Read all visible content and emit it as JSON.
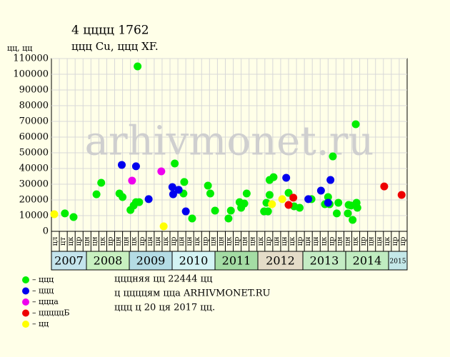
{
  "chart_data": {
    "type": "scatter",
    "title": "4 цццц 1762",
    "subtitle": "ццц Cu, ццц XF.",
    "y_label": "цц, цц",
    "watermark": "arhivmonet.ru",
    "ylim": [
      0,
      110000
    ],
    "yticks": [
      0,
      10000,
      20000,
      30000,
      40000,
      50000,
      60000,
      70000,
      80000,
      90000,
      100000,
      110000
    ],
    "xlim": [
      0,
      45
    ],
    "grid": true,
    "categories": [
      "цл",
      "цт",
      "цк",
      "цр",
      "цн",
      "цн",
      "цк",
      "цр",
      "цн",
      "цн",
      "цк",
      "цр",
      "цн",
      "цн",
      "цк",
      "цр",
      "цн",
      "цн",
      "цк",
      "цр",
      "цн",
      "цн",
      "цк",
      "цр",
      "цн",
      "цн",
      "цк",
      "цр",
      "цн",
      "цн",
      "цк",
      "цр",
      "цн",
      "цн",
      "цк",
      "цр",
      "цн",
      "цн",
      "цк",
      "цр",
      "цн",
      "цн",
      "цк",
      "цр",
      "цр"
    ],
    "years": [
      {
        "label": "2007",
        "color": "#c4e4ec"
      },
      {
        "label": "2008",
        "color": "#c8f0c0"
      },
      {
        "label": "2009",
        "color": "#b4dce4"
      },
      {
        "label": "2010",
        "color": "#d4f4f4"
      },
      {
        "label": "2011",
        "color": "#a4dca4"
      },
      {
        "label": "2012",
        "color": "#e4dcc8"
      },
      {
        "label": "2013",
        "color": "#c4ecc4"
      },
      {
        "label": "2014",
        "color": "#c0ecc0"
      },
      {
        "label": "2015",
        "color": "#c4e8e8"
      }
    ],
    "series": [
      {
        "name": "– ццц",
        "color": "#00ee00",
        "x": [
          1.7,
          2.8,
          5.7,
          6.3,
          8.6,
          9.0,
          10.0,
          10.4,
          10.7,
          10.9,
          11.1,
          15.6,
          16.7,
          16.8,
          17.8,
          19.8,
          20.1,
          20.7,
          22.4,
          22.7,
          23.8,
          24.0,
          24.4,
          24.7,
          26.9,
          27.2,
          27.4,
          27.6,
          27.6,
          28.1,
          30.0,
          30.7,
          31.4,
          32.9,
          34.6,
          35.0,
          35.2,
          35.6,
          36.1,
          36.3,
          37.6,
          37.5,
          38.1,
          37.9,
          38.5,
          38.6,
          38.7
        ],
        "values": [
          11400,
          9100,
          23600,
          30900,
          24100,
          21800,
          13600,
          16400,
          18600,
          105000,
          18600,
          43200,
          24100,
          31400,
          8200,
          29100,
          24100,
          13200,
          8200,
          13200,
          18600,
          15000,
          17700,
          24100,
          12700,
          18200,
          12700,
          23200,
          32700,
          34500,
          24500,
          15900,
          15000,
          20500,
          17300,
          21800,
          17300,
          47700,
          11400,
          18200,
          16800,
          11400,
          7300,
          16400,
          68200,
          18200,
          15000
        ]
      },
      {
        "name": "– ццц",
        "color": "#0000ee",
        "x": [
          8.9,
          10.7,
          12.3,
          15.3,
          15.4,
          16.1,
          17.0,
          29.7,
          32.5,
          34.1,
          35.0,
          35.3
        ],
        "values": [
          42300,
          41400,
          20500,
          28200,
          23600,
          26400,
          12700,
          34100,
          20500,
          25900,
          18200,
          32700
        ]
      },
      {
        "name": "– ццца",
        "color": "#ee00ee",
        "x": [
          10.2,
          13.9
        ],
        "values": [
          32300,
          38200
        ]
      },
      {
        "name": "– цццццБ",
        "color": "#ee0000",
        "x": [
          30.0,
          30.6,
          42.1,
          44.3
        ],
        "values": [
          16800,
          21400,
          28600,
          23200
        ]
      },
      {
        "name": "– цц",
        "color": "#ffff00",
        "x": [
          0.36,
          14.2,
          27.9,
          29.2
        ],
        "values": [
          10900,
          3200,
          17300,
          20500
        ]
      }
    ],
    "notes": [
      "цццняя цц 22444 цц",
      "ц ццццям цца ARHIVMONET.RU",
      "ццц ц 20 ця 2017 цц."
    ]
  }
}
